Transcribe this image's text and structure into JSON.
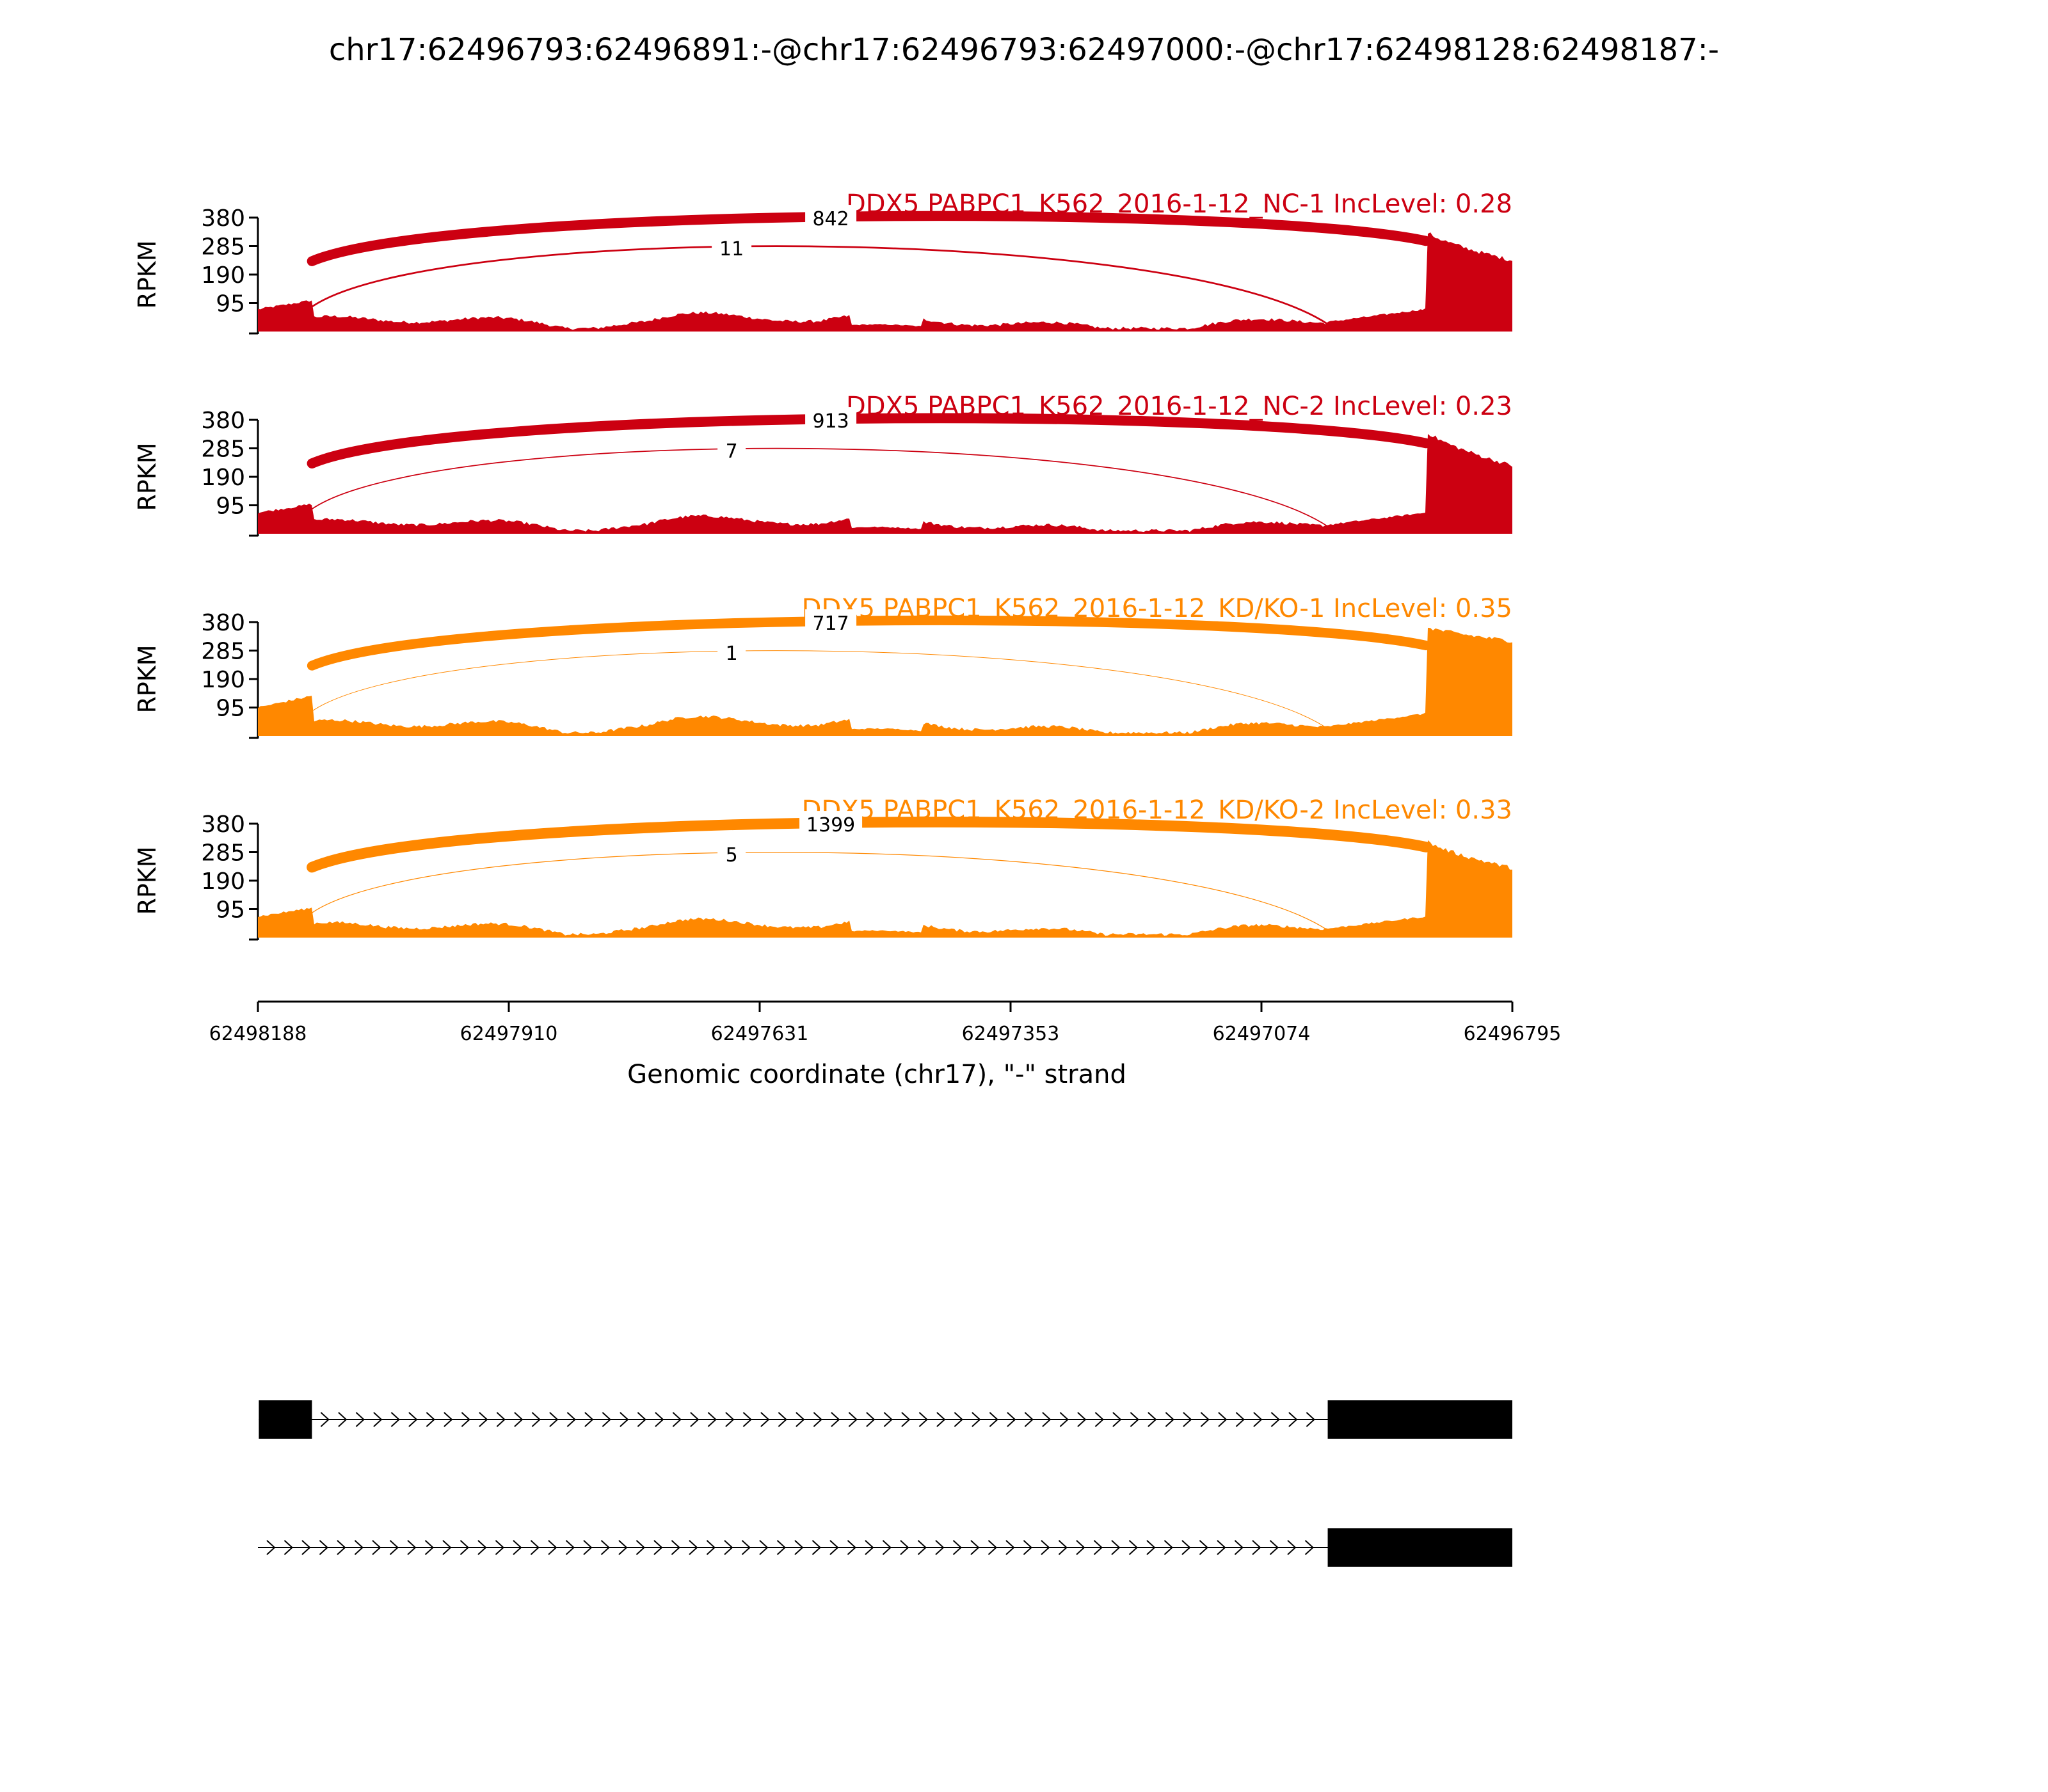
{
  "chart_data": {
    "type": "sashimi",
    "title": "chr17:62496793:62496891:-@chr17:62496793:62497000:-@chr17:62498128:62498187:-",
    "xlabel": "Genomic coordinate (chr17), \"-\" strand",
    "ylabel": "RPKM",
    "x_ticks": [
      "62498188",
      "62497910",
      "62497631",
      "62497353",
      "62497074",
      "62496795"
    ],
    "x_range": [
      62498188,
      62496795
    ],
    "y_ticks": [
      95,
      190,
      285,
      380
    ],
    "ylim": [
      0,
      380
    ],
    "exons": {
      "upstream": [
        62498187,
        62498128
      ],
      "middle": [
        62497000,
        62496891
      ],
      "downstream": [
        62496891,
        62496795
      ]
    },
    "tracks": [
      {
        "label": "DDX5 PABPC1_K562_2016-1-12_NC-1 IncLevel: 0.28",
        "color": "#cc0011",
        "junctions": [
          {
            "count": "842",
            "from": 62498128,
            "to": 62496891
          },
          {
            "count": "11",
            "from": 62498128,
            "to": 62497000
          }
        ],
        "coverage": {
          "upstream": 100,
          "intron": 40,
          "middle": 48,
          "downstream": 330,
          "tail": 230
        }
      },
      {
        "label": "DDX5 PABPC1_K562_2016-1-12_NC-2 IncLevel: 0.23",
        "color": "#cc0011",
        "junctions": [
          {
            "count": "913",
            "from": 62498128,
            "to": 62496891
          },
          {
            "count": "7",
            "from": 62498128,
            "to": 62497000
          }
        ],
        "coverage": {
          "upstream": 95,
          "intron": 38,
          "middle": 45,
          "downstream": 340,
          "tail": 220
        }
      },
      {
        "label": "DDX5 PABPC1_K562_2016-1-12_KD/KO-1 IncLevel: 0.35",
        "color": "#ff8800",
        "junctions": [
          {
            "count": "717",
            "from": 62498128,
            "to": 62496891
          },
          {
            "count": "1",
            "from": 62498128,
            "to": 62497000
          }
        ],
        "coverage": {
          "upstream": 130,
          "intron": 42,
          "middle": 48,
          "downstream": 360,
          "tail": 310
        }
      },
      {
        "label": "DDX5 PABPC1_K562_2016-1-12_KD/KO-2 IncLevel: 0.33",
        "color": "#ff8800",
        "junctions": [
          {
            "count": "1399",
            "from": 62498128,
            "to": 62496891
          },
          {
            "count": "5",
            "from": 62498128,
            "to": 62497000
          }
        ],
        "coverage": {
          "upstream": 95,
          "intron": 40,
          "middle": 45,
          "downstream": 320,
          "tail": 225
        }
      }
    ],
    "isoforms": [
      {
        "exons": [
          [
            62498187,
            62498128
          ],
          [
            62497000,
            62496795
          ]
        ]
      },
      {
        "exons": [
          [
            62497000,
            62496795
          ]
        ]
      }
    ]
  }
}
